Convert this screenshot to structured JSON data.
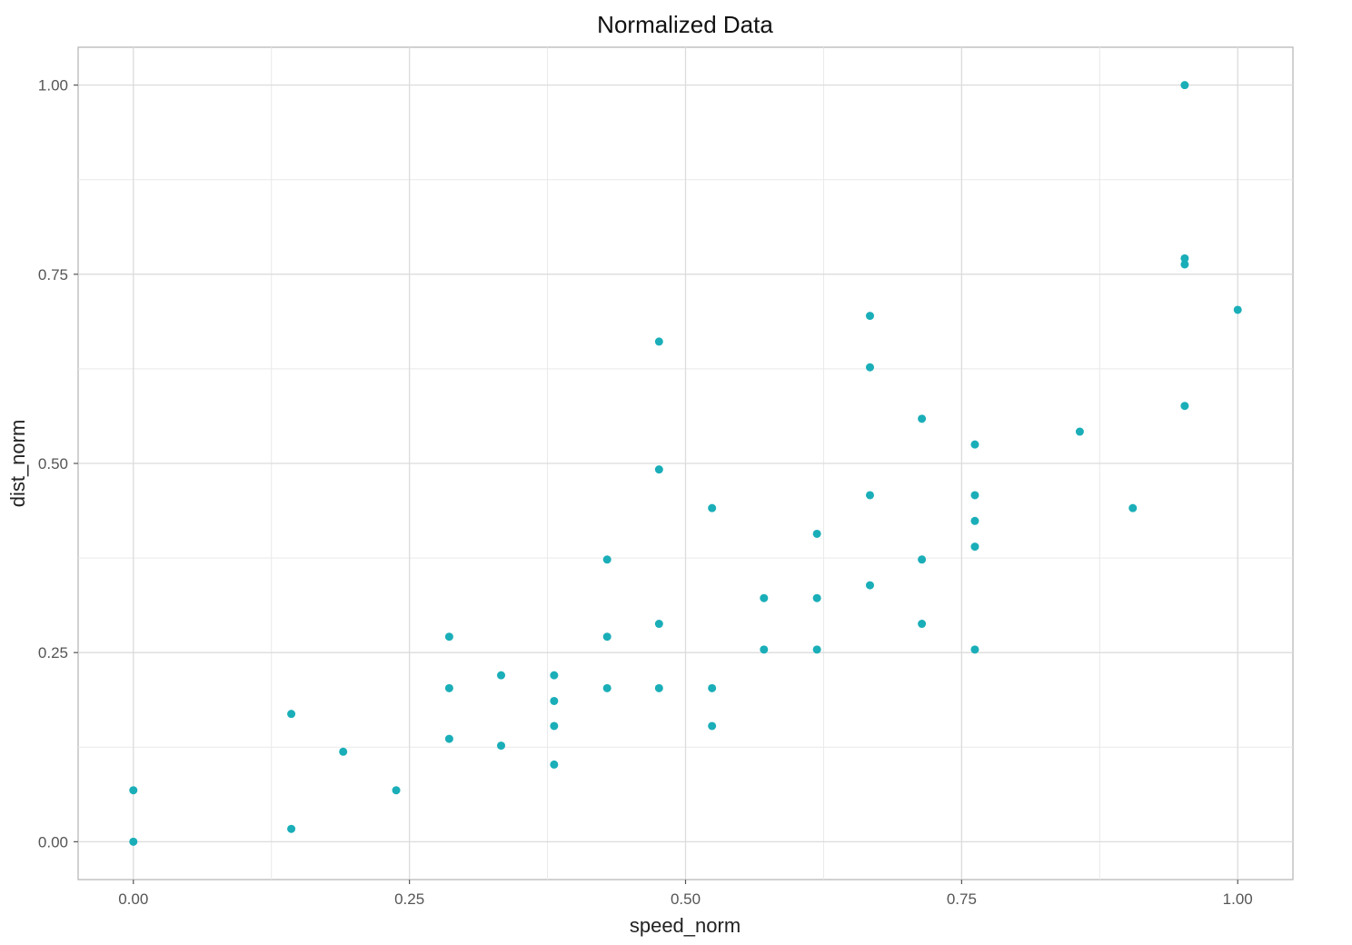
{
  "chart_data": {
    "type": "scatter",
    "title": "Normalized Data",
    "xlabel": "speed_norm",
    "ylabel": "dist_norm",
    "xlim": [
      -0.05,
      1.05
    ],
    "ylim": [
      -0.05,
      1.05
    ],
    "x_ticks": [
      0,
      0.25,
      0.5,
      0.75,
      1
    ],
    "x_tick_labels": [
      "0.00",
      "0.25",
      "0.50",
      "0.75",
      "1.00"
    ],
    "y_ticks": [
      0,
      0.25,
      0.5,
      0.75,
      1
    ],
    "y_tick_labels": [
      "0.00",
      "0.25",
      "0.50",
      "0.75",
      "1.00"
    ],
    "grid": true,
    "point_color": "#1aaeb8",
    "series": [
      {
        "x": [
          0,
          0,
          0.143,
          0.143,
          0.19,
          0.238,
          0.286,
          0.286,
          0.286,
          0.333,
          0.333,
          0.381,
          0.381,
          0.381,
          0.381,
          0.429,
          0.429,
          0.429,
          0.476,
          0.476,
          0.476,
          0.476,
          0.524,
          0.524,
          0.524,
          0.571,
          0.571,
          0.619,
          0.619,
          0.619,
          0.667,
          0.667,
          0.667,
          0.667,
          0.714,
          0.714,
          0.714,
          0.762,
          0.762,
          0.762,
          0.762,
          0.762,
          0.857,
          0.905,
          0.952,
          0.952,
          0.952,
          0.952,
          1.0
        ],
        "y": [
          0,
          0.068,
          0.017,
          0.169,
          0.119,
          0.068,
          0.136,
          0.203,
          0.271,
          0.127,
          0.22,
          0.102,
          0.153,
          0.186,
          0.22,
          0.203,
          0.271,
          0.373,
          0.203,
          0.288,
          0.492,
          0.661,
          0.153,
          0.203,
          0.441,
          0.254,
          0.322,
          0.254,
          0.322,
          0.407,
          0.339,
          0.458,
          0.627,
          0.695,
          0.288,
          0.373,
          0.559,
          0.254,
          0.39,
          0.424,
          0.458,
          0.525,
          0.542,
          0.441,
          0.576,
          0.763,
          0.771,
          1.0,
          0.703
        ]
      }
    ]
  }
}
